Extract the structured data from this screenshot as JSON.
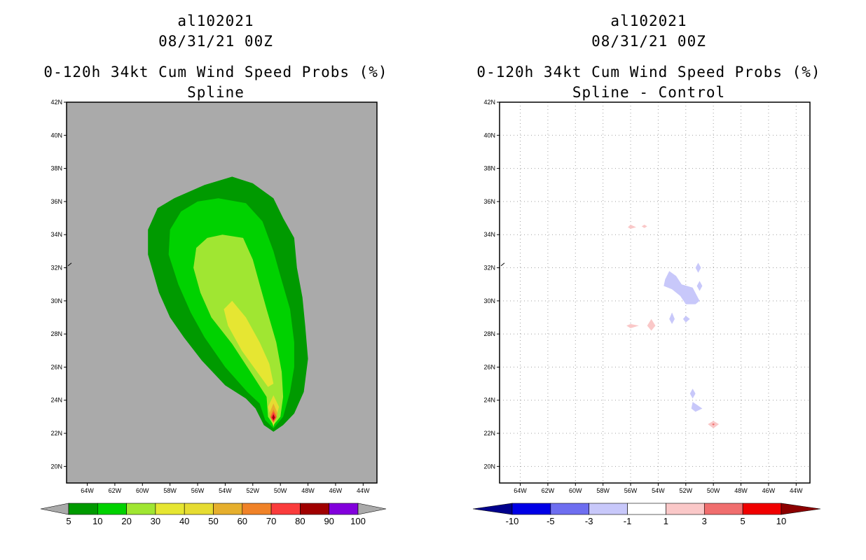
{
  "chart_data": [
    {
      "type": "heatmap",
      "storm_id": "al102021",
      "datetime": "08/31/21 00Z",
      "title": "0-120h 34kt Cum Wind Speed Probs (%)",
      "subtitle": "Spline",
      "lon_range": [
        -65.5,
        -43
      ],
      "lat_range": [
        19,
        42
      ],
      "x_ticks": [
        "64W",
        "62W",
        "60W",
        "58W",
        "56W",
        "54W",
        "52W",
        "50W",
        "48W",
        "46W",
        "44W"
      ],
      "y_ticks": [
        "20N",
        "22N",
        "24N",
        "26N",
        "28N",
        "30N",
        "32N",
        "34N",
        "36N",
        "38N",
        "40N",
        "42N"
      ],
      "grid": false,
      "colorbar": {
        "labels": [
          "5",
          "10",
          "20",
          "30",
          "40",
          "50",
          "60",
          "70",
          "80",
          "90",
          "100"
        ],
        "colors": [
          "#009a00",
          "#00d200",
          "#a0e632",
          "#e6e632",
          "#e6dc32",
          "#e6af2d",
          "#f08228",
          "#fa3c3c",
          "#a00000",
          "#8200dc"
        ],
        "below_color": "#aaaaaa",
        "above_color": "#aaaaaa"
      },
      "contours": [
        {
          "level": 5,
          "color": "#009a00",
          "points": [
            [
              -53.5,
              37.5
            ],
            [
              -52,
              37.1
            ],
            [
              -50.5,
              36.2
            ],
            [
              -49.8,
              35
            ],
            [
              -49,
              33.8
            ],
            [
              -48.8,
              32
            ],
            [
              -48.4,
              30.2
            ],
            [
              -48.2,
              28.5
            ],
            [
              -48,
              26.5
            ],
            [
              -48.3,
              24.5
            ],
            [
              -49,
              23.2
            ],
            [
              -49.8,
              22.5
            ],
            [
              -50.5,
              22.1
            ],
            [
              -51.2,
              22.5
            ],
            [
              -51.8,
              23.5
            ],
            [
              -52.5,
              24.1
            ],
            [
              -54,
              24.9
            ],
            [
              -55.7,
              26.4
            ],
            [
              -57,
              27.8
            ],
            [
              -58,
              29
            ],
            [
              -58.8,
              30.5
            ],
            [
              -59.6,
              32.8
            ],
            [
              -59.6,
              34.3
            ],
            [
              -58.9,
              35.6
            ],
            [
              -57.7,
              36.2
            ],
            [
              -55.5,
              37
            ]
          ]
        },
        {
          "level": 10,
          "color": "#00d200",
          "points": [
            [
              -54.5,
              36.2
            ],
            [
              -52.5,
              35.9
            ],
            [
              -51.3,
              34.8
            ],
            [
              -50.5,
              33
            ],
            [
              -50,
              31.5
            ],
            [
              -49.3,
              29.5
            ],
            [
              -49,
              27.5
            ],
            [
              -49,
              26
            ],
            [
              -49.3,
              24.5
            ],
            [
              -49.8,
              23
            ],
            [
              -50.5,
              22.3
            ],
            [
              -51.1,
              22.8
            ],
            [
              -51.5,
              23.8
            ],
            [
              -52.4,
              24.5
            ],
            [
              -54,
              26
            ],
            [
              -55.5,
              27.8
            ],
            [
              -56.5,
              29.3
            ],
            [
              -57.4,
              31
            ],
            [
              -58.1,
              32.8
            ],
            [
              -58,
              34.3
            ],
            [
              -57.2,
              35.4
            ],
            [
              -56,
              36
            ]
          ]
        },
        {
          "level": 20,
          "color": "#a0e632",
          "points": [
            [
              -54.2,
              34
            ],
            [
              -52.7,
              33.8
            ],
            [
              -52,
              32.5
            ],
            [
              -51.5,
              31
            ],
            [
              -51,
              29.5
            ],
            [
              -50.3,
              27.5
            ],
            [
              -49.9,
              25.7
            ],
            [
              -49.8,
              24.2
            ],
            [
              -50,
              23
            ],
            [
              -50.5,
              22.5
            ],
            [
              -50.9,
              23
            ],
            [
              -51,
              24.2
            ],
            [
              -52,
              25.5
            ],
            [
              -53.5,
              27.4
            ],
            [
              -55,
              29
            ],
            [
              -55.8,
              30.5
            ],
            [
              -56.3,
              32
            ],
            [
              -56.1,
              33.2
            ],
            [
              -55.3,
              33.8
            ]
          ]
        },
        {
          "level": 30,
          "color": "#e6e632",
          "points": [
            [
              -53.5,
              30
            ],
            [
              -52.5,
              29
            ],
            [
              -51.5,
              27.5
            ],
            [
              -50.8,
              26.2
            ],
            [
              -50.5,
              25
            ],
            [
              -50.9,
              24.8
            ],
            [
              -51.5,
              25.5
            ],
            [
              -52.8,
              27
            ],
            [
              -53.8,
              28.5
            ],
            [
              -54.1,
              29.5
            ]
          ]
        },
        {
          "level": 40,
          "color": "#e6dc32",
          "points": [
            [
              -50.1,
              23.6
            ],
            [
              -50.5,
              22.4
            ],
            [
              -50.9,
              23.6
            ],
            [
              -50.5,
              24.3
            ]
          ]
        },
        {
          "level": 50,
          "color": "#e6af2d",
          "points": [
            [
              -50.2,
              23.2
            ],
            [
              -50.5,
              22.6
            ],
            [
              -50.8,
              23.2
            ],
            [
              -50.5,
              23.8
            ]
          ]
        },
        {
          "level": 60,
          "color": "#f08228",
          "points": [
            [
              -50.25,
              23
            ],
            [
              -50.5,
              22.65
            ],
            [
              -50.75,
              23
            ],
            [
              -50.5,
              23.45
            ]
          ]
        },
        {
          "level": 70,
          "color": "#fa3c3c",
          "points": [
            [
              -50.3,
              22.95
            ],
            [
              -50.5,
              22.7
            ],
            [
              -50.7,
              22.95
            ],
            [
              -50.5,
              23.3
            ]
          ]
        },
        {
          "level": 80,
          "color": "#a00000",
          "points": [
            [
              -50.4,
              22.95
            ],
            [
              -50.5,
              22.8
            ],
            [
              -50.6,
              22.95
            ],
            [
              -50.5,
              23.15
            ]
          ]
        }
      ]
    },
    {
      "type": "heatmap",
      "storm_id": "al102021",
      "datetime": "08/31/21 00Z",
      "title": "0-120h 34kt Cum Wind Speed Probs (%)",
      "subtitle": "Spline - Control",
      "lon_range": [
        -65.5,
        -43
      ],
      "lat_range": [
        19,
        42
      ],
      "x_ticks": [
        "64W",
        "62W",
        "60W",
        "58W",
        "56W",
        "54W",
        "52W",
        "50W",
        "48W",
        "46W",
        "44W"
      ],
      "y_ticks": [
        "20N",
        "22N",
        "24N",
        "26N",
        "28N",
        "30N",
        "32N",
        "34N",
        "36N",
        "38N",
        "40N",
        "42N"
      ],
      "grid": true,
      "colorbar": {
        "labels": [
          "-10",
          "-5",
          "-3",
          "-1",
          "1",
          "3",
          "5",
          "10"
        ],
        "colors": [
          "#0000e6",
          "#6e6ef0",
          "#c8c8fa",
          "#ffffff",
          "#fac8c8",
          "#f06e6e",
          "#f00000"
        ],
        "below_color": "#00008c",
        "above_color": "#8c0000"
      },
      "contours": [
        {
          "level": -3,
          "color": "#c8c8fa",
          "points": [
            [
              -53.2,
              31.8
            ],
            [
              -52.7,
              31.5
            ],
            [
              -52.3,
              31
            ],
            [
              -51.5,
              30.8
            ],
            [
              -51,
              30
            ],
            [
              -51.3,
              29.8
            ],
            [
              -52,
              29.8
            ],
            [
              -52.4,
              30.3
            ],
            [
              -53,
              30.7
            ],
            [
              -53.6,
              30.9
            ],
            [
              -53.5,
              31.3
            ]
          ]
        },
        {
          "level": -3,
          "color": "#c8c8fa",
          "points": [
            [
              -51.1,
              32.3
            ],
            [
              -50.9,
              32
            ],
            [
              -51.1,
              31.7
            ],
            [
              -51.3,
              32
            ]
          ]
        },
        {
          "level": -3,
          "color": "#c8c8fa",
          "points": [
            [
              -51,
              31.2
            ],
            [
              -50.8,
              30.9
            ],
            [
              -51,
              30.6
            ],
            [
              -51.2,
              30.9
            ]
          ]
        },
        {
          "level": -3,
          "color": "#c8c8fa",
          "points": [
            [
              -53,
              29.3
            ],
            [
              -52.8,
              28.9
            ],
            [
              -53,
              28.6
            ],
            [
              -53.2,
              28.9
            ]
          ]
        },
        {
          "level": -3,
          "color": "#c8c8fa",
          "points": [
            [
              -52,
              29.1
            ],
            [
              -51.7,
              28.9
            ],
            [
              -52,
              28.7
            ],
            [
              -52.2,
              28.9
            ]
          ]
        },
        {
          "level": -3,
          "color": "#c8c8fa",
          "points": [
            [
              -51.5,
              24.7
            ],
            [
              -51.3,
              24.4
            ],
            [
              -51.5,
              24.1
            ],
            [
              -51.7,
              24.4
            ]
          ]
        },
        {
          "level": -3,
          "color": "#c8c8fa",
          "points": [
            [
              -51.5,
              23.9
            ],
            [
              -50.8,
              23.5
            ],
            [
              -51.3,
              23.3
            ],
            [
              -51.6,
              23.5
            ]
          ]
        },
        {
          "level": 1,
          "color": "#fac8c8",
          "points": [
            [
              -56,
              34.6
            ],
            [
              -55.6,
              34.45
            ],
            [
              -56,
              34.35
            ],
            [
              -56.2,
              34.45
            ]
          ]
        },
        {
          "level": 1,
          "color": "#fac8c8",
          "points": [
            [
              -55,
              34.6
            ],
            [
              -54.8,
              34.5
            ],
            [
              -55,
              34.4
            ],
            [
              -55.2,
              34.5
            ]
          ]
        },
        {
          "level": 1,
          "color": "#fac8c8",
          "points": [
            [
              -56,
              28.6
            ],
            [
              -55.4,
              28.5
            ],
            [
              -56,
              28.35
            ],
            [
              -56.3,
              28.5
            ]
          ]
        },
        {
          "level": 1,
          "color": "#fac8c8",
          "points": [
            [
              -54.5,
              28.9
            ],
            [
              -54.2,
              28.5
            ],
            [
              -54.5,
              28.2
            ],
            [
              -54.8,
              28.5
            ]
          ]
        },
        {
          "level": 1,
          "color": "#fac8c8",
          "points": [
            [
              -50,
              22.75
            ],
            [
              -49.6,
              22.55
            ],
            [
              -50,
              22.3
            ],
            [
              -50.4,
              22.55
            ]
          ]
        },
        {
          "level": 3,
          "color": "#f06e6e",
          "points": [
            [
              -50,
              22.6
            ],
            [
              -49.9,
              22.55
            ],
            [
              -50,
              22.48
            ],
            [
              -50.1,
              22.55
            ]
          ]
        }
      ]
    }
  ]
}
